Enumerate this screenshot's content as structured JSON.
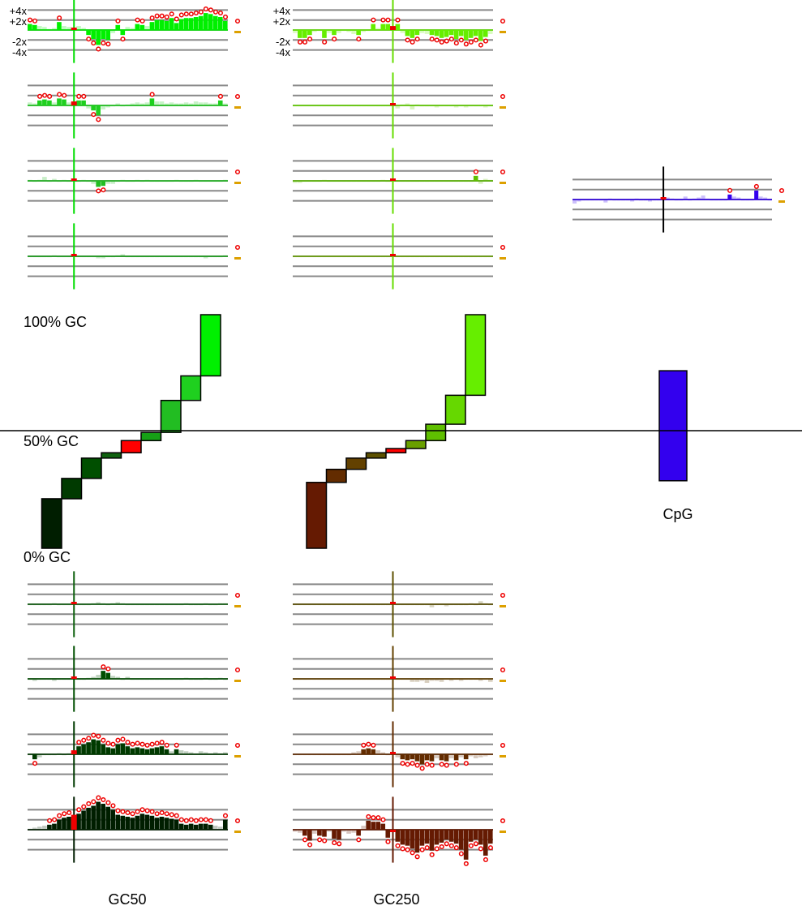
{
  "colors": {
    "grid": "#888888",
    "outlier": "#ee0000",
    "current": "#ee0000",
    "stem_gc50": "#00dd00",
    "stem_gc250": "#66dd00",
    "cpg_bar": "#3300ee",
    "cpg_pos": "#000000",
    "median_tick": "#dda000",
    "gc50_steps": [
      "#001e00",
      "#003a00",
      "#004f00",
      "#0f610f",
      "#ff0000",
      "#16a016",
      "#22bd22",
      "#1fd01f",
      "#00f000"
    ],
    "gc250_steps": [
      "#651a02",
      "#632c00",
      "#634100",
      "#5c5000",
      "#ff0000",
      "#69a000",
      "#5fbf00",
      "#66d800",
      "#66ee00"
    ]
  },
  "chart_data": {
    "type": "bar",
    "tick_labels": [
      "+4x",
      "+2x",
      "-2x",
      "-4x"
    ],
    "y_labels": [
      "100% GC",
      "50% GC",
      "0% GC"
    ],
    "groups": [
      {
        "name": "GC50",
        "label": "GC50",
        "bins": [
          {
            "gc_low": 0.0,
            "gc_high": 0.212
          },
          {
            "gc_low": 0.212,
            "gc_high": 0.299
          },
          {
            "gc_low": 0.299,
            "gc_high": 0.386
          },
          {
            "gc_low": 0.386,
            "gc_high": 0.409
          },
          {
            "gc_low": 0.409,
            "gc_high": 0.461
          },
          {
            "gc_low": 0.461,
            "gc_high": 0.496
          },
          {
            "gc_low": 0.496,
            "gc_high": 0.633
          },
          {
            "gc_low": 0.633,
            "gc_high": 0.738
          },
          {
            "gc_low": 0.738,
            "gc_high": 1.0
          }
        ],
        "tracks": {
          "upper": [
            {
              "pos_index": 9,
              "series": [
                0.6,
                0.5,
                0.4,
                0.3,
                0.1,
                0.2,
                0.8,
                0.4,
                0.3,
                0.2,
                0.4,
                0.2,
                -0.5,
                -0.9,
                -1.5,
                -0.9,
                -1.0,
                -0.3,
                0.5,
                -0.5,
                0.3,
                0.2,
                0.6,
                0.5,
                0.4,
                0.8,
                1.0,
                1.0,
                0.9,
                1.2,
                0.7,
                1.1,
                1.2,
                1.2,
                1.3,
                1.4,
                1.7,
                1.6,
                1.4,
                1.3,
                0.9
              ]
            },
            {
              "pos_index": 9,
              "series": [
                0.3,
                0.2,
                0.5,
                0.6,
                0.5,
                0.3,
                0.7,
                0.6,
                0.3,
                0.4,
                0.5,
                0.5,
                -0.3,
                -0.5,
                -1.0,
                -0.4,
                -0.2,
                -0.1,
                0.2,
                0.0,
                0.1,
                0.2,
                0.3,
                0.2,
                0.3,
                0.7,
                0.4,
                0.4,
                0.2,
                0.3,
                0.2,
                0.2,
                0.3,
                0.2,
                0.4,
                0.3,
                0.3,
                0.2,
                0.2,
                0.5,
                0.2
              ]
            },
            {
              "pos_index": 9,
              "series": [
                0.1,
                0.0,
                0.1,
                0.4,
                0.0,
                0.2,
                0.0,
                0.1,
                0.0,
                0.0,
                0.0,
                0.1,
                0.0,
                -0.3,
                -0.6,
                -0.5,
                -0.3,
                -0.3,
                -0.1,
                0.1,
                0.0,
                0.0,
                0.1,
                0.0,
                0.1,
                0.0,
                0.0,
                0.0,
                0.0,
                0.0,
                0.1,
                0.0,
                0.0,
                0.0,
                0.1,
                0.0,
                0.0,
                0.0,
                0.0,
                0.0,
                0.1
              ]
            },
            {
              "pos_index": 9,
              "series": [
                0.0,
                0.0,
                -0.1,
                0.0,
                0.0,
                0.1,
                0.0,
                0.0,
                0.0,
                0.0,
                0.0,
                0.0,
                0.0,
                0.0,
                -0.2,
                -0.2,
                0.0,
                0.0,
                0.1,
                0.2,
                0.0,
                0.0,
                0.0,
                0.0,
                0.0,
                0.0,
                0.0,
                0.0,
                0.0,
                0.0,
                0.0,
                0.0,
                0.0,
                0.0,
                -0.1,
                -0.1,
                -0.2,
                0.0,
                0.0,
                0.0,
                0.1
              ]
            }
          ],
          "lower": [
            {
              "pos_index": 9,
              "series": [
                0.0,
                0.0,
                0.0,
                0.0,
                0.0,
                0.1,
                0.0,
                0.0,
                0.0,
                0.0,
                0.0,
                0.0,
                0.0,
                0.1,
                0.2,
                0.1,
                0.0,
                0.1,
                0.2,
                0.1,
                0.0,
                0.0,
                0.0,
                0.0,
                0.0,
                0.0,
                0.0,
                0.0,
                0.0,
                0.0,
                0.0,
                0.0,
                0.1,
                0.0,
                0.0,
                0.0,
                0.1,
                0.0,
                0.0,
                0.1,
                0.1
              ]
            },
            {
              "pos_index": 9,
              "series": [
                -0.1,
                -0.2,
                -0.1,
                0.0,
                0.0,
                -0.2,
                0.0,
                0.0,
                0.0,
                0.0,
                0.0,
                0.0,
                0.1,
                0.2,
                0.4,
                0.8,
                0.6,
                0.3,
                0.2,
                -0.1,
                0.2,
                -0.1,
                0.0,
                0.0,
                0.0,
                0.0,
                0.0,
                0.0,
                0.0,
                0.0,
                0.0,
                0.0,
                0.1,
                0.0,
                0.0,
                0.0,
                0.1,
                0.0,
                0.0,
                0.1,
                -0.1
              ]
            },
            {
              "pos_index": 9,
              "series": [
                -0.1,
                -0.5,
                -0.3,
                -0.1,
                0.0,
                0.0,
                0.1,
                0.0,
                0.1,
                0.4,
                0.8,
                1.0,
                1.2,
                1.5,
                1.4,
                1.0,
                0.7,
                0.6,
                1.0,
                1.1,
                0.8,
                0.6,
                0.7,
                0.6,
                0.5,
                0.6,
                0.7,
                0.8,
                0.5,
                0.3,
                0.5,
                0.4,
                0.3,
                0.2,
                0.1,
                0.3,
                0.2,
                0.1,
                0.2,
                0.1,
                0.2
              ]
            },
            {
              "pos_index": 9,
              "series": [
                0.1,
                0.2,
                0.3,
                0.4,
                0.5,
                0.6,
                1.0,
                1.2,
                1.3,
                1.5,
                1.6,
                1.9,
                2.2,
                2.4,
                2.8,
                2.6,
                2.3,
                2.0,
                1.5,
                1.4,
                1.3,
                1.2,
                1.4,
                1.6,
                1.5,
                1.4,
                1.2,
                1.3,
                1.2,
                1.1,
                1.0,
                0.6,
                0.5,
                0.6,
                0.5,
                0.6,
                0.6,
                0.5,
                0.4,
                0.3,
                1.0
              ]
            }
          ]
        }
      },
      {
        "name": "GC250",
        "label": "GC250",
        "bins": [
          {
            "gc_low": 0.0,
            "gc_high": 0.282
          },
          {
            "gc_low": 0.282,
            "gc_high": 0.338
          },
          {
            "gc_low": 0.338,
            "gc_high": 0.386
          },
          {
            "gc_low": 0.386,
            "gc_high": 0.409
          },
          {
            "gc_low": 0.409,
            "gc_high": 0.427
          },
          {
            "gc_low": 0.427,
            "gc_high": 0.461
          },
          {
            "gc_low": 0.461,
            "gc_high": 0.531
          },
          {
            "gc_low": 0.531,
            "gc_high": 0.655
          },
          {
            "gc_low": 0.655,
            "gc_high": 1.0
          }
        ],
        "tracks": {
          "upper": [
            {
              "pos_index": 20,
              "series": [
                -0.3,
                -0.8,
                -0.8,
                -0.5,
                -0.2,
                -0.1,
                -0.8,
                -0.3,
                -0.5,
                -0.3,
                -0.1,
                -0.2,
                -0.4,
                -0.5,
                -0.2,
                0.0,
                0.6,
                0.2,
                0.6,
                0.6,
                0.4,
                0.6,
                -0.3,
                -0.6,
                -0.8,
                -0.5,
                -0.3,
                -0.4,
                -0.5,
                -0.6,
                -0.8,
                -0.7,
                -0.5,
                -0.9,
                -0.6,
                -1.0,
                -0.8,
                -0.6,
                -1.1,
                -0.7,
                -0.4
              ]
            },
            {
              "pos_index": 20,
              "series": [
                0.0,
                0.0,
                0.0,
                0.0,
                0.0,
                0.0,
                0.0,
                0.0,
                0.0,
                0.0,
                0.0,
                0.0,
                0.0,
                0.0,
                0.0,
                0.0,
                0.0,
                0.0,
                0.0,
                0.0,
                0.0,
                -0.3,
                0.1,
                0.2,
                -0.4,
                0.1,
                0.0,
                0.0,
                0.0,
                -0.2,
                0.0,
                0.0,
                0.0,
                -0.2,
                0.0,
                -0.2,
                0.0,
                -0.1,
                0.0,
                -0.2,
                0.0
              ]
            },
            {
              "pos_index": 20,
              "series": [
                -0.2,
                -0.2,
                -0.1,
                0.0,
                -0.1,
                0.0,
                0.1,
                0.0,
                0.0,
                0.0,
                0.0,
                0.0,
                0.0,
                0.0,
                0.0,
                -0.1,
                0.0,
                0.0,
                0.1,
                0.0,
                0.0,
                0.0,
                0.0,
                0.0,
                0.0,
                0.0,
                0.0,
                0.0,
                0.0,
                0.0,
                0.0,
                0.0,
                0.0,
                0.0,
                0.0,
                0.0,
                0.0,
                0.5,
                -0.3,
                0.2,
                0.1
              ]
            },
            {
              "pos_index": 20,
              "series": [
                -0.1,
                -0.1,
                0.0,
                0.0,
                0.0,
                0.0,
                0.0,
                0.0,
                0.0,
                0.0,
                0.0,
                0.0,
                0.0,
                0.0,
                0.0,
                0.0,
                0.0,
                0.0,
                0.0,
                0.0,
                0.0,
                0.0,
                0.0,
                0.0,
                0.0,
                0.0,
                -0.1,
                0.0,
                0.0,
                0.0,
                0.0,
                0.0,
                -0.1,
                0.0,
                0.0,
                0.0,
                -0.1,
                0.0,
                0.0,
                0.0,
                0.0
              ]
            }
          ],
          "lower": [
            {
              "pos_index": 20,
              "series": [
                0.0,
                0.0,
                0.0,
                0.0,
                0.0,
                0.0,
                0.0,
                0.0,
                0.0,
                0.0,
                0.0,
                0.0,
                0.0,
                0.0,
                0.0,
                0.0,
                0.0,
                0.0,
                0.0,
                0.0,
                0.0,
                0.0,
                0.0,
                0.0,
                0.0,
                0.0,
                -0.1,
                0.0,
                -0.3,
                -0.1,
                0.0,
                -0.2,
                0.0,
                0.0,
                0.0,
                0.0,
                0.1,
                0.0,
                0.3,
                0.1,
                0.0
              ]
            },
            {
              "pos_index": 20,
              "series": [
                -0.1,
                -0.1,
                -0.1,
                0.0,
                0.0,
                0.0,
                0.0,
                0.0,
                0.0,
                0.0,
                0.0,
                0.0,
                0.0,
                0.0,
                0.0,
                0.0,
                0.0,
                0.0,
                0.0,
                0.0,
                0.0,
                0.0,
                0.0,
                0.0,
                -0.3,
                -0.3,
                -0.2,
                -0.4,
                -0.2,
                -0.2,
                -0.3,
                0.0,
                -0.2,
                -0.1,
                -0.2,
                0.0,
                -0.1,
                0.0,
                -0.2,
                0.0,
                -0.3
              ]
            },
            {
              "pos_index": 20,
              "series": [
                0.0,
                0.0,
                0.0,
                0.0,
                0.0,
                0.0,
                0.0,
                0.0,
                0.0,
                0.0,
                0.0,
                0.0,
                0.2,
                0.3,
                0.5,
                0.6,
                0.5,
                0.4,
                0.2,
                0.0,
                0.0,
                -0.3,
                -0.5,
                -0.6,
                -0.5,
                -0.7,
                -1.0,
                -0.6,
                -0.7,
                -0.4,
                -0.6,
                -0.7,
                -0.4,
                -0.6,
                -0.3,
                -0.5,
                -0.2,
                -0.4,
                -0.3,
                -0.2,
                -0.1
              ]
            },
            {
              "pos_index": 20,
              "series": [
                -0.2,
                -0.3,
                -0.6,
                -1.1,
                -0.4,
                -0.6,
                -0.7,
                -0.2,
                -0.9,
                -1.0,
                -0.2,
                -0.4,
                -0.3,
                -0.6,
                0.4,
                0.9,
                0.8,
                0.8,
                0.6,
                -0.8,
                -0.2,
                -1.2,
                -1.5,
                -1.6,
                -1.9,
                -2.3,
                -1.6,
                -1.4,
                -2.1,
                -1.5,
                -1.3,
                -1.0,
                -1.2,
                -1.4,
                -2.0,
                -3.0,
                -1.2,
                -1.0,
                -1.5,
                -2.6,
                -1.4
              ]
            }
          ]
        }
      },
      {
        "name": "CpG",
        "label": "CpG",
        "cpg_bar": {
          "gc_low": 0.289,
          "gc_high": 0.76
        },
        "track": {
          "pos_index": 20,
          "series": [
            -0.4,
            -0.2,
            -0.1,
            0.0,
            -0.1,
            0.0,
            -0.1,
            -0.3,
            0.1,
            0.0,
            0.0,
            -0.1,
            0.0,
            -0.2,
            0.1,
            0.0,
            -0.1,
            -0.2,
            0.0,
            0.0,
            0.0,
            0.2,
            0.1,
            0.0,
            0.0,
            0.3,
            0.0,
            0.1,
            0.2,
            0.4,
            0.1,
            0.0,
            0.0,
            0.0,
            0.0,
            0.5,
            0.3,
            0.2,
            0.0,
            0.0,
            0.0,
            0.9,
            0.3,
            0.2,
            0.0
          ]
        }
      }
    ]
  }
}
